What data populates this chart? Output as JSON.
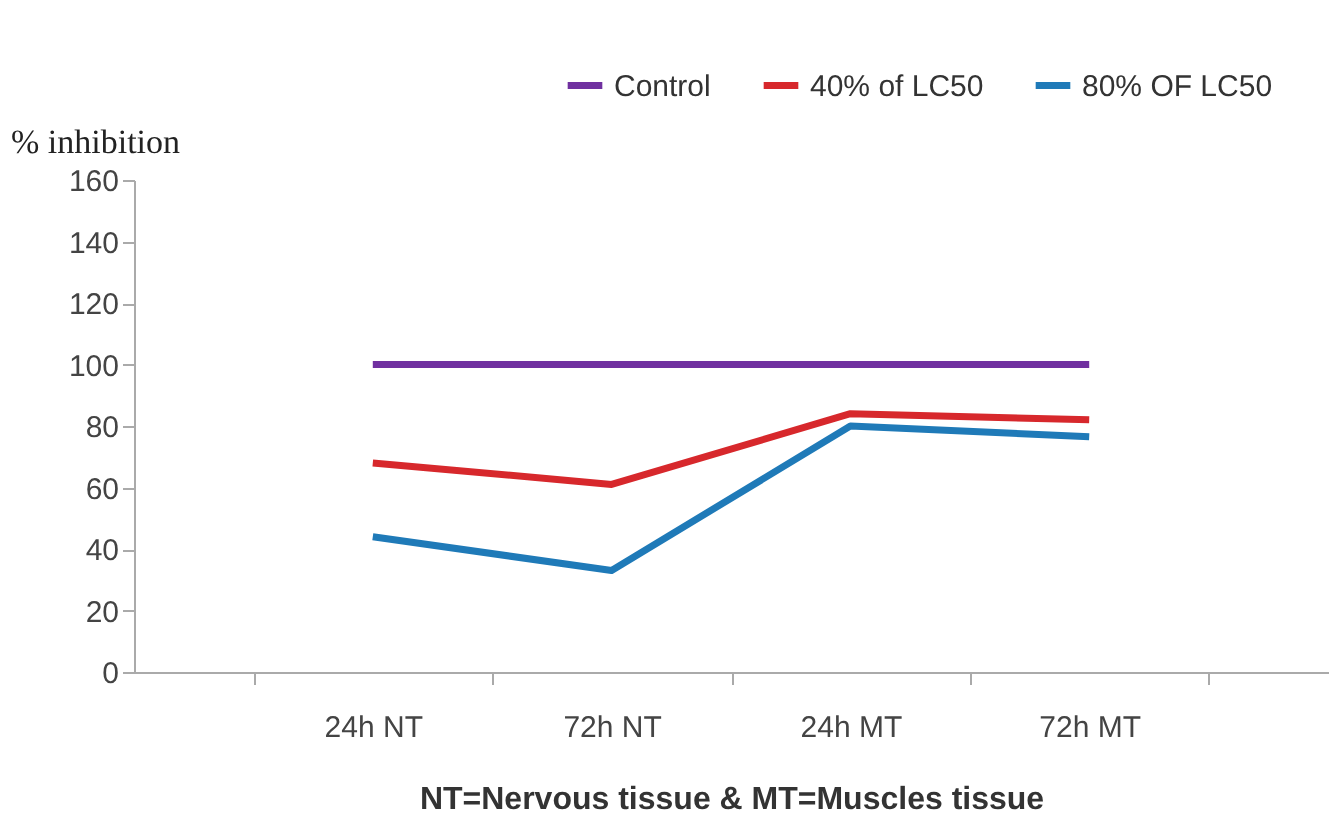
{
  "chart_data": {
    "type": "line",
    "xlabel": "NT=Nervous tissue & MT=Muscles tissue",
    "ylabel": "% inhibition",
    "categories": [
      "24h NT",
      "72h NT",
      "24h MT",
      "72h MT"
    ],
    "series": [
      {
        "name": "Control",
        "color": "#7030a0",
        "values": [
          100,
          100,
          100,
          100
        ]
      },
      {
        "name": "40% of LC50",
        "color": "#d7282c",
        "values": [
          68,
          61,
          84,
          82
        ]
      },
      {
        "name": "80% OF LC50",
        "color": "#1f7ab8",
        "values": [
          44,
          33,
          80,
          76.5
        ]
      }
    ],
    "ylim": [
      0,
      160
    ],
    "yticks": [
      0,
      20,
      40,
      60,
      80,
      100,
      120,
      140,
      160
    ],
    "grid": false,
    "legend": "top right",
    "marker": "none",
    "line_style": "solid"
  }
}
